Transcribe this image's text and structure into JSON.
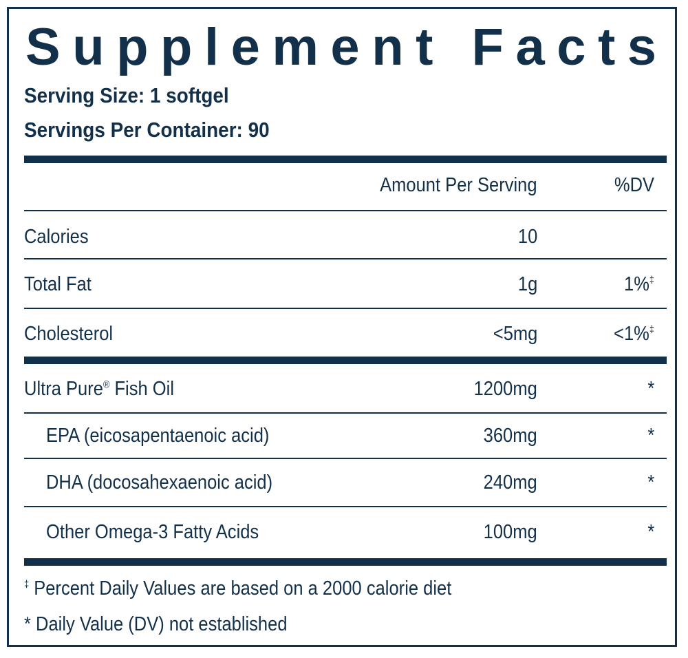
{
  "title": "Supplement Facts",
  "serving_size": "Serving Size: 1 softgel",
  "servings_per_container": "Servings Per Container: 90",
  "header": {
    "amount": "Amount Per Serving",
    "dv": "%DV"
  },
  "rows": [
    {
      "name": "Calories",
      "amount": "10",
      "dv": ""
    },
    {
      "name": "Total Fat",
      "amount": "1g",
      "dv": "1%‡"
    },
    {
      "name": "Cholesterol",
      "amount": "<5mg",
      "dv": "<1%‡"
    },
    {
      "name": "Ultra Pure® Fish Oil",
      "amount": "1200mg",
      "dv": "*"
    },
    {
      "name": "EPA (eicosapentaenoic acid)",
      "amount": "360mg",
      "dv": "*"
    },
    {
      "name": "DHA (docosahexaenoic acid)",
      "amount": "240mg",
      "dv": "*"
    },
    {
      "name": "Other Omega-3 Fatty Acids",
      "amount": "100mg",
      "dv": "*"
    }
  ],
  "footnotes": [
    "‡ Percent Daily Values are based on a 2000 calorie diet",
    "* Daily Value (DV) not established"
  ]
}
